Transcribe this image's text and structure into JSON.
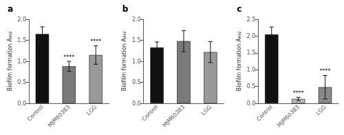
{
  "chart_data": [
    {
      "type": "bar",
      "title": "a",
      "ylabel": "Biofilm formation A₄₉₂",
      "categories": [
        "Control",
        "MJM60383",
        "LGG"
      ],
      "values": [
        1.65,
        0.88,
        1.15
      ],
      "errors": [
        0.17,
        0.12,
        0.22
      ],
      "colors": [
        "#111111",
        "#7a7a7a",
        "#999999"
      ],
      "annotations": [
        null,
        "****",
        "****"
      ],
      "ylim": [
        0,
        2.0
      ],
      "yticks": [
        {
          "value": 0.0,
          "label": "0.0"
        },
        0.5,
        {
          "value": 1.0,
          "label": "1.0"
        },
        1.5,
        {
          "value": 2.0,
          "label": "2.0"
        }
      ],
      "grid": false
    },
    {
      "type": "bar",
      "title": "b",
      "ylabel": "Biofilm formation A₄₉₂",
      "categories": [
        "Control",
        "MJM60383",
        "LGG"
      ],
      "values": [
        1.33,
        1.48,
        1.22
      ],
      "errors": [
        0.13,
        0.25,
        0.25
      ],
      "colors": [
        "#111111",
        "#7a7a7a",
        "#999999"
      ],
      "ylim": [
        0,
        2.0
      ],
      "yticks": [
        {
          "value": 0.0,
          "label": "0.0"
        },
        0.5,
        {
          "value": 1.0,
          "label": "1.0"
        },
        1.5,
        {
          "value": 2.0,
          "label": "2.0"
        }
      ],
      "grid": false
    },
    {
      "type": "bar",
      "title": "c",
      "ylabel": "Biofilm formation A₄₉₂",
      "categories": [
        "Control",
        "MJM60383",
        "LGG"
      ],
      "values": [
        2.05,
        0.13,
        0.48
      ],
      "errors": [
        0.22,
        0.05,
        0.35
      ],
      "colors": [
        "#111111",
        "#bbbbbb",
        "#888888"
      ],
      "annotations": [
        null,
        "****",
        "****"
      ],
      "ylim": [
        0,
        2.5
      ],
      "yticks": [
        {
          "value": 0.0,
          "label": "0.0"
        },
        0.5,
        {
          "value": 1.0,
          "label": "1.0"
        },
        1.5,
        {
          "value": 2.0,
          "label": "2.0"
        },
        2.5
      ],
      "grid": false
    }
  ]
}
